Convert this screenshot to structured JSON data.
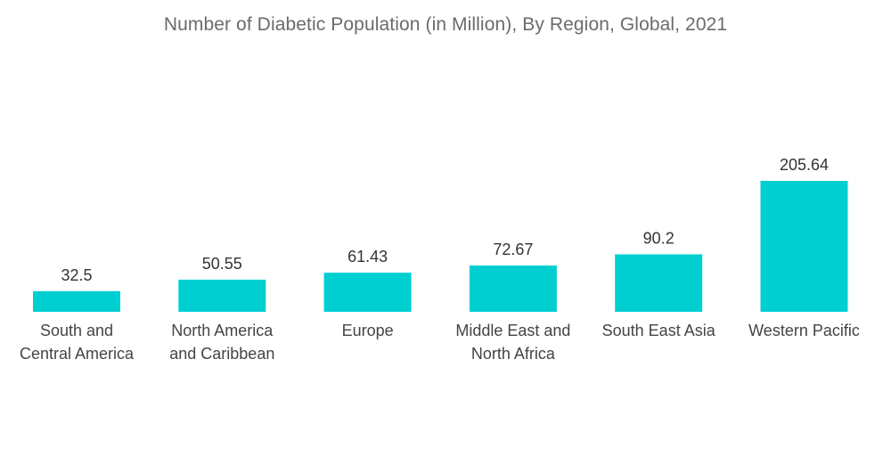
{
  "chart_data": {
    "type": "bar",
    "title": "Number of Diabetic Population (in Million), By Region, Global, 2021",
    "xlabel": "",
    "ylabel": "",
    "categories": [
      [
        "South and",
        "Central America"
      ],
      [
        "North America",
        "and Caribbean"
      ],
      [
        "Europe"
      ],
      [
        "Middle East and",
        "North Africa"
      ],
      [
        "South East Asia"
      ],
      [
        "Western Pacific"
      ]
    ],
    "values": [
      32.5,
      50.55,
      61.43,
      72.67,
      90.2,
      205.64
    ],
    "value_labels": [
      "32.5",
      "50.55",
      "61.43",
      "72.67",
      "90.2",
      "205.64"
    ],
    "bar_color": "#00cfd1",
    "grid": false,
    "legend": "none"
  }
}
